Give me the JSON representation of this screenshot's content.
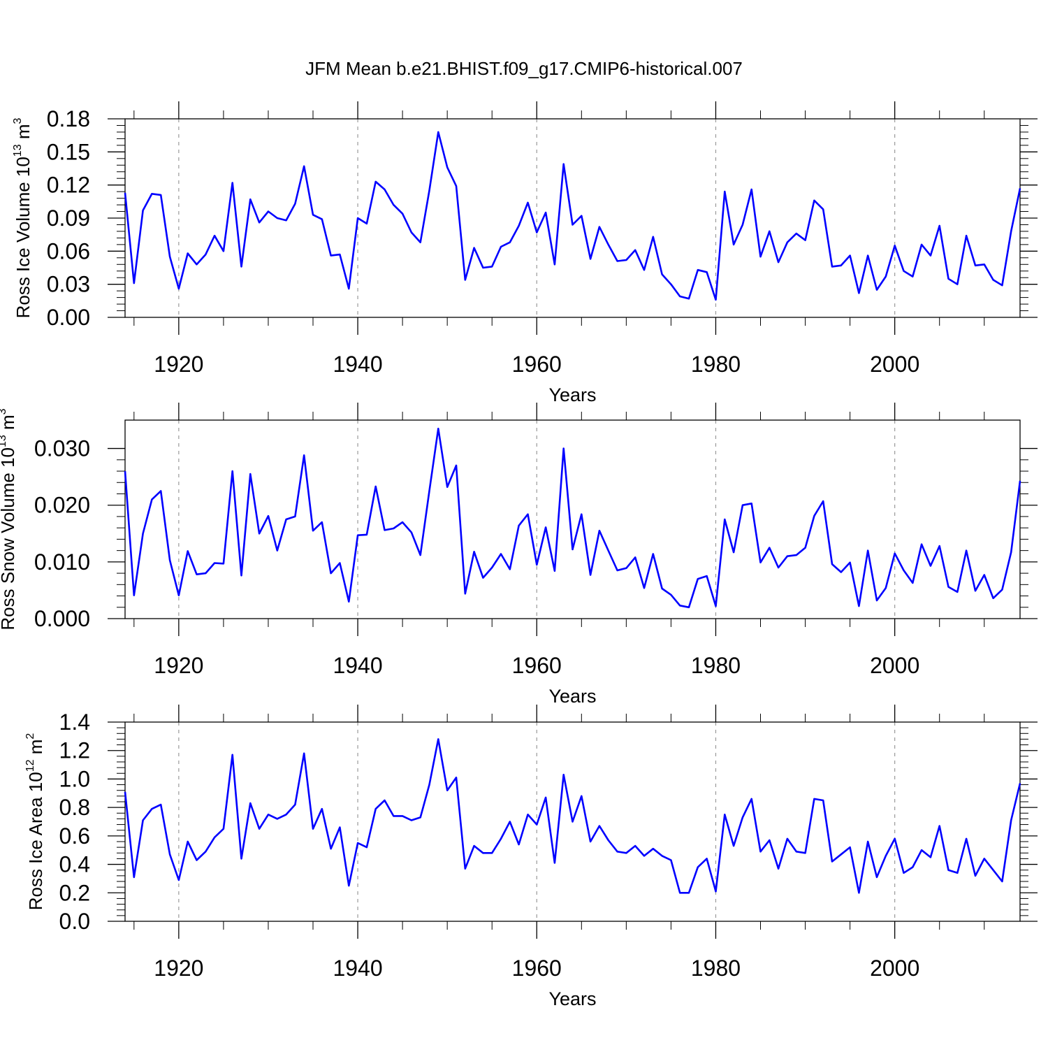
{
  "figure_title": "JFM Mean b.e21.BHIST.f09_g17.CMIP6-historical.007",
  "colors": {
    "series": "#0000ff",
    "axis": "#000000",
    "grid": "#999999"
  },
  "chart_data": [
    {
      "type": "line",
      "xlabel": "Years",
      "ylabel": {
        "text": "Ross Ice Volume 10",
        "exp": "13",
        "unit": " m",
        "unit_exp": "3"
      },
      "xlim": [
        1914,
        2014
      ],
      "ylim": [
        0,
        0.18
      ],
      "xticks": [
        1920,
        1940,
        1960,
        1980,
        2000
      ],
      "xtick_labels": [
        "1920",
        "1940",
        "1960",
        "1980",
        "2000"
      ],
      "yticks": [
        0,
        0.03,
        0.06,
        0.09,
        0.12,
        0.15,
        0.18
      ],
      "ytick_labels": [
        "0.00",
        "0.03",
        "0.06",
        "0.09",
        "0.12",
        "0.15",
        "0.18"
      ],
      "grid": "vertical dashed at major x ticks",
      "x_start": 1914,
      "values": [
        0.113,
        0.031,
        0.097,
        0.112,
        0.111,
        0.055,
        0.026,
        0.058,
        0.048,
        0.057,
        0.074,
        0.06,
        0.122,
        0.046,
        0.107,
        0.086,
        0.096,
        0.09,
        0.088,
        0.103,
        0.137,
        0.093,
        0.089,
        0.056,
        0.057,
        0.026,
        0.09,
        0.085,
        0.123,
        0.116,
        0.102,
        0.094,
        0.077,
        0.068,
        0.115,
        0.168,
        0.136,
        0.119,
        0.034,
        0.063,
        0.045,
        0.046,
        0.064,
        0.068,
        0.083,
        0.104,
        0.077,
        0.095,
        0.048,
        0.139,
        0.084,
        0.092,
        0.053,
        0.082,
        0.066,
        0.051,
        0.052,
        0.061,
        0.043,
        0.073,
        0.039,
        0.03,
        0.019,
        0.017,
        0.043,
        0.041,
        0.016,
        0.114,
        0.066,
        0.084,
        0.116,
        0.055,
        0.078,
        0.05,
        0.068,
        0.076,
        0.07,
        0.106,
        0.098,
        0.046,
        0.047,
        0.056,
        0.022,
        0.056,
        0.025,
        0.037,
        0.065,
        0.042,
        0.037,
        0.066,
        0.056,
        0.083,
        0.035,
        0.03,
        0.074,
        0.047,
        0.048,
        0.034,
        0.029,
        0.078,
        0.117
      ]
    },
    {
      "type": "line",
      "xlabel": "Years",
      "ylabel": {
        "text": "Ross Snow Volume 10",
        "exp": "13",
        "unit": " m",
        "unit_exp": "3"
      },
      "xlim": [
        1914,
        2014
      ],
      "ylim": [
        0,
        0.035
      ],
      "xticks": [
        1920,
        1940,
        1960,
        1980,
        2000
      ],
      "xtick_labels": [
        "1920",
        "1940",
        "1960",
        "1980",
        "2000"
      ],
      "yticks": [
        0,
        0.01,
        0.02,
        0.03
      ],
      "ytick_labels": [
        "0.000",
        "0.010",
        "0.020",
        "0.030"
      ],
      "grid": "vertical dashed at major x ticks",
      "x_start": 1914,
      "values": [
        0.026,
        0.0041,
        0.015,
        0.021,
        0.0225,
        0.0103,
        0.0041,
        0.0119,
        0.0078,
        0.008,
        0.0098,
        0.0097,
        0.026,
        0.0076,
        0.0255,
        0.015,
        0.0181,
        0.012,
        0.0175,
        0.018,
        0.0288,
        0.0155,
        0.017,
        0.008,
        0.0098,
        0.003,
        0.0147,
        0.0148,
        0.0233,
        0.0156,
        0.0159,
        0.017,
        0.0152,
        0.0112,
        0.0225,
        0.0335,
        0.0232,
        0.027,
        0.0044,
        0.0118,
        0.0072,
        0.009,
        0.0114,
        0.0087,
        0.0164,
        0.0184,
        0.0095,
        0.0161,
        0.0084,
        0.03,
        0.0122,
        0.0184,
        0.0077,
        0.0155,
        0.012,
        0.0085,
        0.0089,
        0.0108,
        0.0054,
        0.0114,
        0.0053,
        0.0042,
        0.0023,
        0.002,
        0.007,
        0.0075,
        0.0022,
        0.0175,
        0.0117,
        0.02,
        0.0203,
        0.0099,
        0.0125,
        0.009,
        0.011,
        0.0112,
        0.0125,
        0.0181,
        0.0207,
        0.0096,
        0.0082,
        0.0099,
        0.0022,
        0.012,
        0.0032,
        0.0054,
        0.0115,
        0.0085,
        0.0063,
        0.0131,
        0.0093,
        0.0128,
        0.0056,
        0.0047,
        0.012,
        0.0049,
        0.0077,
        0.0036,
        0.0051,
        0.0117,
        0.0243
      ]
    },
    {
      "type": "line",
      "xlabel": "Years",
      "ylabel": {
        "text": "Ross Ice Area 10",
        "exp": "12",
        "unit": " m",
        "unit_exp": "2"
      },
      "xlim": [
        1914,
        2014
      ],
      "ylim": [
        0,
        1.4
      ],
      "xticks": [
        1920,
        1940,
        1960,
        1980,
        2000
      ],
      "xtick_labels": [
        "1920",
        "1940",
        "1960",
        "1980",
        "2000"
      ],
      "yticks": [
        0,
        0.2,
        0.4,
        0.6,
        0.8,
        1.0,
        1.2,
        1.4
      ],
      "ytick_labels": [
        "0.0",
        "0.2",
        "0.4",
        "0.6",
        "0.8",
        "1.0",
        "1.2",
        "1.4"
      ],
      "grid": "vertical dashed at major x ticks",
      "x_start": 1914,
      "values": [
        0.91,
        0.31,
        0.71,
        0.79,
        0.82,
        0.47,
        0.29,
        0.56,
        0.43,
        0.49,
        0.59,
        0.65,
        1.17,
        0.44,
        0.83,
        0.65,
        0.75,
        0.72,
        0.75,
        0.82,
        1.18,
        0.65,
        0.79,
        0.51,
        0.66,
        0.25,
        0.55,
        0.52,
        0.79,
        0.85,
        0.74,
        0.74,
        0.71,
        0.73,
        0.96,
        1.28,
        0.92,
        1.01,
        0.37,
        0.53,
        0.48,
        0.48,
        0.58,
        0.7,
        0.54,
        0.75,
        0.68,
        0.87,
        0.41,
        1.03,
        0.7,
        0.88,
        0.56,
        0.67,
        0.57,
        0.49,
        0.48,
        0.53,
        0.46,
        0.51,
        0.46,
        0.43,
        0.2,
        0.2,
        0.38,
        0.44,
        0.21,
        0.75,
        0.53,
        0.73,
        0.86,
        0.49,
        0.57,
        0.37,
        0.58,
        0.49,
        0.48,
        0.86,
        0.85,
        0.42,
        0.47,
        0.52,
        0.2,
        0.56,
        0.31,
        0.46,
        0.58,
        0.34,
        0.38,
        0.5,
        0.45,
        0.67,
        0.36,
        0.34,
        0.58,
        0.32,
        0.44,
        0.36,
        0.28,
        0.71,
        0.97
      ]
    }
  ]
}
